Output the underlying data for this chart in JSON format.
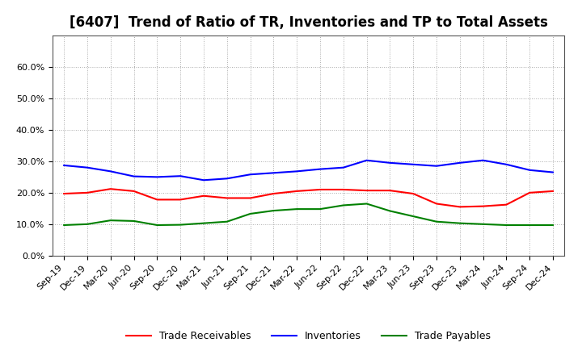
{
  "title": "[6407]  Trend of Ratio of TR, Inventories and TP to Total Assets",
  "x_labels": [
    "Sep-19",
    "Dec-19",
    "Mar-20",
    "Jun-20",
    "Sep-20",
    "Dec-20",
    "Mar-21",
    "Jun-21",
    "Sep-21",
    "Dec-21",
    "Mar-22",
    "Jun-22",
    "Sep-22",
    "Dec-22",
    "Mar-23",
    "Jun-23",
    "Sep-23",
    "Dec-23",
    "Mar-24",
    "Jun-24",
    "Sep-24",
    "Dec-24"
  ],
  "trade_receivables": [
    0.197,
    0.2,
    0.212,
    0.205,
    0.178,
    0.178,
    0.19,
    0.183,
    0.183,
    0.197,
    0.205,
    0.21,
    0.21,
    0.207,
    0.207,
    0.197,
    0.165,
    0.155,
    0.157,
    0.162,
    0.2,
    0.205
  ],
  "inventories": [
    0.287,
    0.28,
    0.268,
    0.252,
    0.25,
    0.253,
    0.24,
    0.245,
    0.258,
    0.263,
    0.268,
    0.275,
    0.28,
    0.303,
    0.295,
    0.29,
    0.285,
    0.295,
    0.303,
    0.29,
    0.272,
    0.265
  ],
  "trade_payables": [
    0.097,
    0.1,
    0.112,
    0.11,
    0.097,
    0.098,
    0.103,
    0.108,
    0.133,
    0.143,
    0.148,
    0.148,
    0.16,
    0.165,
    0.142,
    0.125,
    0.108,
    0.103,
    0.1,
    0.097,
    0.097,
    0.097
  ],
  "line_colors": {
    "trade_receivables": "#FF0000",
    "inventories": "#0000FF",
    "trade_payables": "#008000"
  },
  "legend_labels": {
    "trade_receivables": "Trade Receivables",
    "inventories": "Inventories",
    "trade_payables": "Trade Payables"
  },
  "ylim": [
    0.0,
    0.7
  ],
  "yticks": [
    0.0,
    0.1,
    0.2,
    0.3,
    0.4,
    0.5,
    0.6
  ],
  "ytick_labels": [
    "0.0%",
    "10.0%",
    "20.0%",
    "30.0%",
    "40.0%",
    "50.0%",
    "60.0%"
  ],
  "background_color": "#FFFFFF",
  "plot_bg_color": "#FFFFFF",
  "grid_color": "#AAAAAA",
  "title_fontsize": 12,
  "tick_fontsize": 8,
  "legend_fontsize": 9
}
